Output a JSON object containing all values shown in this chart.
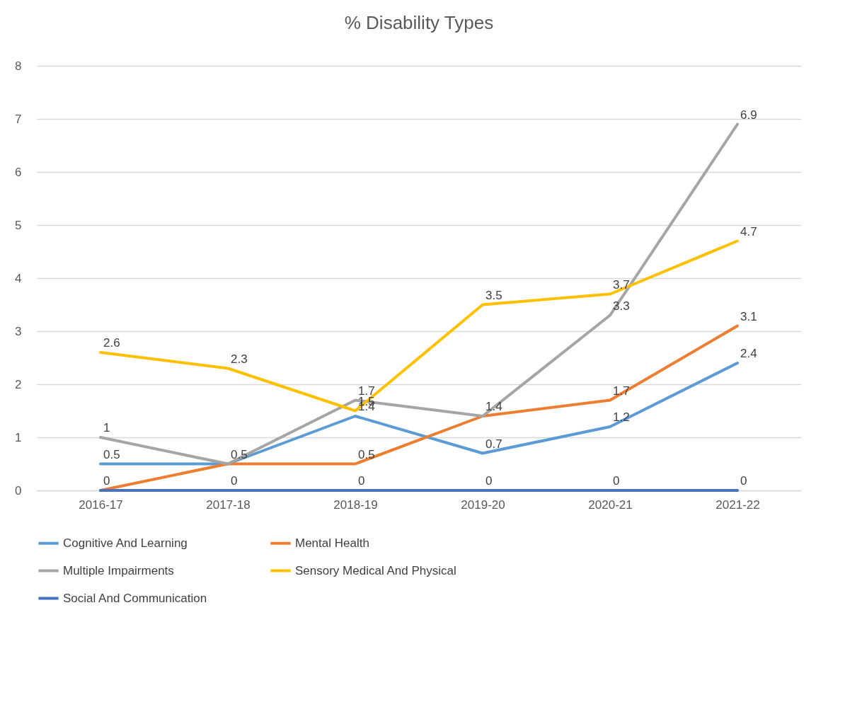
{
  "chart_data": {
    "type": "line",
    "title": "% Disability Types",
    "categories": [
      "2016-17",
      "2017-18",
      "2018-19",
      "2019-20",
      "2020-21",
      "2021-22"
    ],
    "series": [
      {
        "name": "Cognitive And Learning",
        "color": "#5b9bd5",
        "values": [
          0.5,
          0.5,
          1.4,
          0.7,
          1.2,
          2.4
        ],
        "value_labels": [
          "0.5",
          "0.5",
          "1.4",
          "0.7",
          "1.2",
          "2.4"
        ]
      },
      {
        "name": "Mental Health",
        "color": "#ed7d31",
        "values": [
          0,
          0.5,
          0.5,
          1.4,
          1.7,
          3.1
        ],
        "value_labels": [
          "0",
          null,
          "0.5",
          "1.4",
          "1.7",
          "3.1"
        ]
      },
      {
        "name": "Multiple Impairments",
        "color": "#a5a5a5",
        "values": [
          1,
          0.5,
          1.7,
          1.4,
          3.3,
          6.9
        ],
        "value_labels": [
          "1",
          null,
          "1.7",
          null,
          "3.3",
          "6.9"
        ]
      },
      {
        "name": "Sensory Medical And Physical",
        "color": "#ffc000",
        "values": [
          2.6,
          2.3,
          1.5,
          3.5,
          3.7,
          4.7
        ],
        "value_labels": [
          "2.6",
          "2.3",
          "1.5",
          "3.5",
          "3.7",
          "4.7"
        ]
      },
      {
        "name": "Social And Communication",
        "color": "#4472c4",
        "values": [
          0,
          0,
          0,
          0,
          0,
          0
        ],
        "value_labels": [
          null,
          "0",
          "0",
          "0",
          "0",
          "0"
        ]
      }
    ],
    "ylim": [
      0,
      8
    ],
    "yticks": [
      0,
      1,
      2,
      3,
      4,
      5,
      6,
      7,
      8
    ],
    "grid": "y",
    "legend": "bottom",
    "marker": "none",
    "line_style": "solid"
  }
}
